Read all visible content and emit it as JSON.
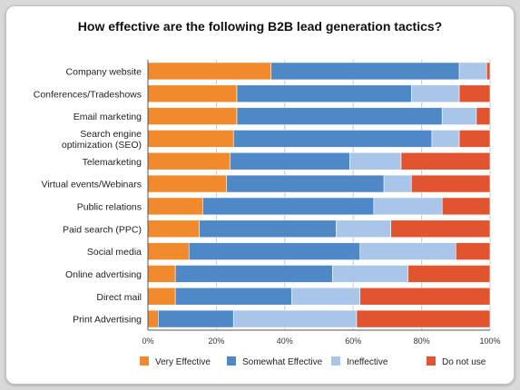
{
  "chart_data": {
    "type": "bar",
    "orientation": "horizontal",
    "stacked": true,
    "title": "How effective are the following B2B lead generation tactics?",
    "categories": [
      "Company website",
      "Conferences/Tradeshows",
      "Email marketing",
      "Search engine optimization (SEO)",
      "Telemarketing",
      "Virtual events/Webinars",
      "Public relations",
      "Paid search (PPC)",
      "Social media",
      "Online advertising",
      "Direct mail",
      "Print Advertising"
    ],
    "series": [
      {
        "name": "Very Effective",
        "color": "#f08a2c",
        "values": [
          36,
          26,
          26,
          25,
          24,
          23,
          16,
          15,
          12,
          8,
          8,
          3
        ]
      },
      {
        "name": "Somewhat Effective",
        "color": "#4f88c6",
        "values": [
          55,
          51,
          60,
          58,
          35,
          46,
          50,
          40,
          50,
          46,
          34,
          22
        ]
      },
      {
        "name": "Ineffective",
        "color": "#a9c5e8",
        "values": [
          8,
          14,
          10,
          8,
          15,
          8,
          20,
          16,
          28,
          22,
          20,
          36
        ]
      },
      {
        "name": "Do not use",
        "color": "#e2532f",
        "values": [
          1,
          9,
          4,
          9,
          26,
          23,
          14,
          29,
          10,
          24,
          38,
          39
        ]
      }
    ],
    "x_axis": {
      "ticks": [
        "0%",
        "20%",
        "40%",
        "60%",
        "80%",
        "100%"
      ],
      "range": [
        0,
        100
      ],
      "unit": "%"
    },
    "grid": true,
    "legend": "bottom"
  }
}
